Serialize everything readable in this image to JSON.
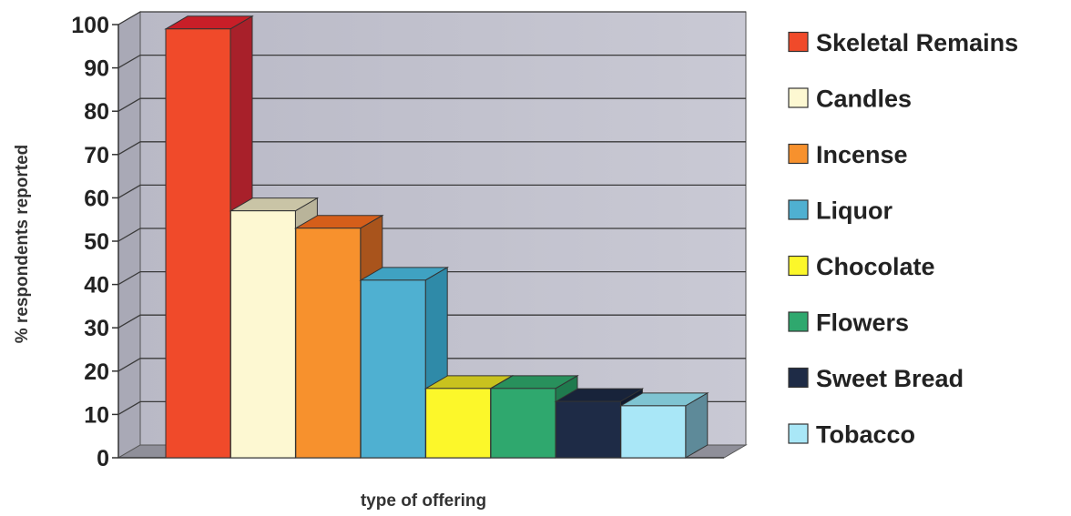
{
  "chart_data": {
    "type": "bar",
    "title": "",
    "xlabel": "type of offering",
    "ylabel": "% respondents reported",
    "ylim": [
      0,
      100
    ],
    "yticks": [
      0,
      10,
      20,
      30,
      40,
      50,
      60,
      70,
      80,
      90,
      100
    ],
    "grid": true,
    "legend_position": "right",
    "three_d": true,
    "series": [
      {
        "name": "Skeletal Remains",
        "value": 99,
        "color": "#f04a2a",
        "side": "#a8202a",
        "top": "#c81e28"
      },
      {
        "name": "Candles",
        "value": 57,
        "color": "#fdf8d2",
        "side": "#b9b49a",
        "top": "#c9c4a6"
      },
      {
        "name": "Incense",
        "value": 53,
        "color": "#f7912d",
        "side": "#a9541c",
        "top": "#d55e1a"
      },
      {
        "name": "Liquor",
        "value": 41,
        "color": "#4fb0d1",
        "side": "#2f8aa8",
        "top": "#3fa2c2"
      },
      {
        "name": "Chocolate",
        "value": 16,
        "color": "#fcf72a",
        "side": "#b7b21c",
        "top": "#c9c21e"
      },
      {
        "name": "Flowers",
        "value": 16,
        "color": "#2fa86e",
        "side": "#1f7a4e",
        "top": "#28905c"
      },
      {
        "name": "Sweet Bread",
        "value": 13,
        "color": "#1e2b46",
        "side": "#121b2e",
        "top": "#18233a"
      },
      {
        "name": "Tobacco",
        "value": 12,
        "color": "#a9e7f7",
        "side": "#5e8a99",
        "top": "#7fc4d2"
      }
    ]
  }
}
